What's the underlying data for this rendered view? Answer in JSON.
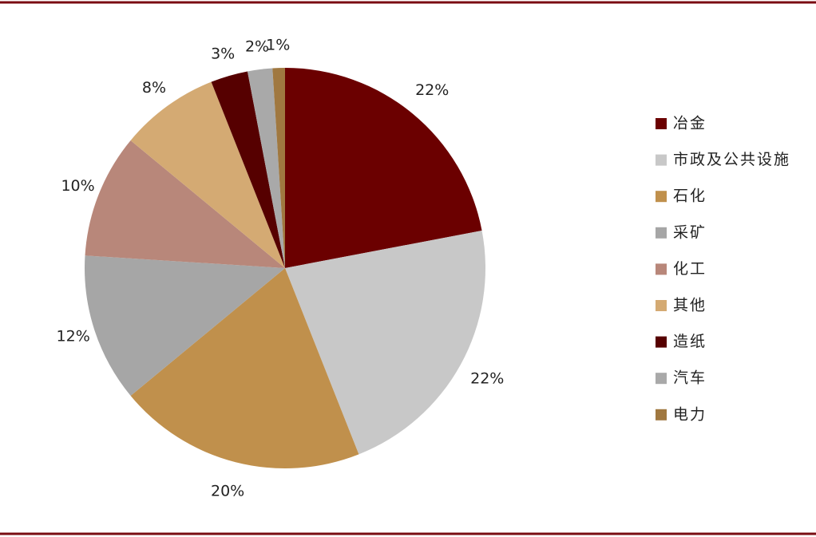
{
  "chart_data": {
    "type": "pie",
    "categories": [
      "冶金",
      "市政及公共设施",
      "石化",
      "采矿",
      "化工",
      "其他",
      "造纸",
      "汽车",
      "电力"
    ],
    "values": [
      22,
      22,
      20,
      12,
      10,
      8,
      3,
      2,
      1
    ],
    "value_labels": [
      "22%",
      "22%",
      "20%",
      "12%",
      "10%",
      "8%",
      "3%",
      "2%",
      "1%"
    ],
    "colors": [
      "#6b0000",
      "#c8c8c8",
      "#c0904c",
      "#a6a6a6",
      "#b8877a",
      "#d4aa73",
      "#560000",
      "#a9a9a9",
      "#a07840"
    ],
    "legend": "right"
  }
}
